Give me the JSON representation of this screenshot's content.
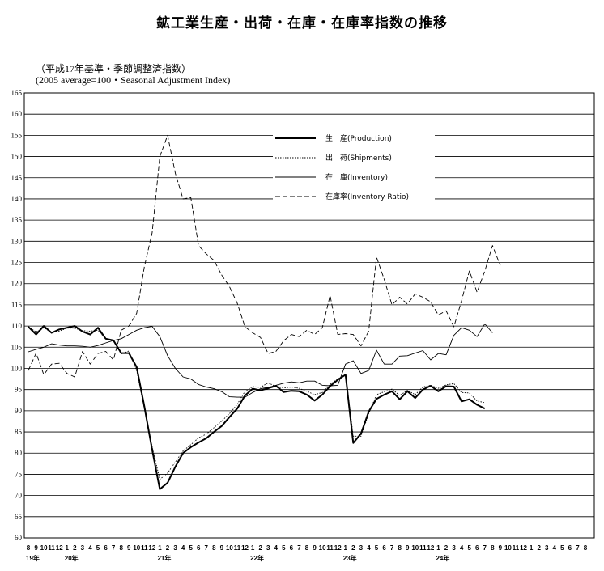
{
  "title": "鉱工業生産・出荷・在庫・在庫率指数の推移",
  "subtitle_jp": "（平成17年基準・季節調整済指数）",
  "subtitle_en": "(2005 average=100・Seasonal Adjustment Index)",
  "chart_data": {
    "type": "line",
    "title": "鉱工業生産・出荷・在庫・在庫率指数の推移",
    "ylim": [
      60,
      165
    ],
    "yticks": [
      60,
      65,
      70,
      75,
      80,
      85,
      90,
      95,
      100,
      105,
      110,
      115,
      120,
      125,
      130,
      135,
      140,
      145,
      150,
      155,
      160,
      165
    ],
    "grid": true,
    "legend_position": "top-center",
    "x_month_labels": [
      "8",
      "9",
      "10",
      "11",
      "12",
      "1",
      "2",
      "3",
      "4",
      "5",
      "6",
      "7",
      "8",
      "9",
      "10",
      "11",
      "12",
      "1",
      "2",
      "3",
      "4",
      "5",
      "6",
      "7",
      "8",
      "9",
      "10",
      "11",
      "12",
      "1",
      "2",
      "3",
      "4",
      "5",
      "6",
      "7",
      "8",
      "9",
      "10",
      "11",
      "12",
      "1",
      "2",
      "3",
      "4",
      "5",
      "6",
      "7",
      "8",
      "9",
      "10",
      "11",
      "12",
      "1",
      "2",
      "3",
      "4",
      "5",
      "6",
      "7",
      "8",
      "9",
      "10",
      "11",
      "12",
      "1",
      "2",
      "3",
      "4",
      "5",
      "6",
      "7",
      "8"
    ],
    "year_labels": [
      {
        "label": "19年",
        "index": 0
      },
      {
        "label": "20年",
        "index": 5
      },
      {
        "label": "21年",
        "index": 17
      },
      {
        "label": "22年",
        "index": 29
      },
      {
        "label": "23年",
        "index": 41
      },
      {
        "label": "24年",
        "index": 53
      }
    ],
    "series": [
      {
        "name": "生　産(Production)",
        "style": "solid-thick",
        "values": [
          109.8,
          108.0,
          110.0,
          108.4,
          109.2,
          109.6,
          110.0,
          108.7,
          108.0,
          109.6,
          107.0,
          106.6,
          103.6,
          103.6,
          100.3,
          91.0,
          80.8,
          71.5,
          73.0,
          76.8,
          80.0,
          81.4,
          82.5,
          83.5,
          85.0,
          86.4,
          88.5,
          90.5,
          93.6,
          95.2,
          94.8,
          95.3,
          95.9,
          94.4,
          94.7,
          94.6,
          93.8,
          92.4,
          93.8,
          95.8,
          97.3,
          98.5,
          82.4,
          84.6,
          89.8,
          92.8,
          93.8,
          94.6,
          92.7,
          94.6,
          93.0,
          95.0,
          95.9,
          94.6,
          95.8,
          95.7,
          92.2,
          92.7,
          91.4,
          90.5
        ]
      },
      {
        "name": "出　荷(Shipments)",
        "style": "dotted",
        "values": [
          109.8,
          108.6,
          109.6,
          108.5,
          108.8,
          109.5,
          109.5,
          108.9,
          108.8,
          109.0,
          107.0,
          106.6,
          103.4,
          104.1,
          99.5,
          90.5,
          81.5,
          73.8,
          75.3,
          77.9,
          80.5,
          82.0,
          83.6,
          84.5,
          86.0,
          87.6,
          89.3,
          91.5,
          94.6,
          95.7,
          95.5,
          96.6,
          95.7,
          95.4,
          95.6,
          95.3,
          94.6,
          93.8,
          94.3,
          96.2,
          97.5,
          98.6,
          84.0,
          84.0,
          89.3,
          93.8,
          94.5,
          95.1,
          93.6,
          94.8,
          93.8,
          95.6,
          96.0,
          95.3,
          96.1,
          96.4,
          94.3,
          94.2,
          92.3,
          91.9
        ]
      },
      {
        "name": "在　庫(Inventory)",
        "style": "solid-thin",
        "values": [
          103.9,
          104.5,
          105.0,
          105.8,
          105.5,
          105.3,
          105.3,
          105.2,
          105.0,
          105.4,
          106.0,
          106.6,
          107.0,
          108.0,
          109.0,
          109.6,
          109.9,
          107.5,
          103.0,
          100.0,
          98.0,
          97.5,
          96.2,
          95.6,
          95.2,
          94.5,
          93.3,
          93.2,
          93.2,
          94.3,
          95.2,
          95.5,
          96.0,
          96.5,
          96.8,
          96.6,
          97.0,
          97.0,
          96.0,
          95.9,
          96.0,
          101.0,
          101.8,
          98.8,
          99.5,
          104.3,
          101.0,
          101.0,
          102.9,
          103.0,
          103.6,
          104.2,
          102.0,
          103.5,
          103.2,
          107.8,
          109.6,
          109.0,
          107.5,
          110.5,
          108.4
        ]
      },
      {
        "name": "在庫率(Inventory Ratio)",
        "style": "dashed",
        "values": [
          99.5,
          103.6,
          98.5,
          101.0,
          101.2,
          98.8,
          98.0,
          104.0,
          101.0,
          103.5,
          104.0,
          102.0,
          109.0,
          110.0,
          113.0,
          124.0,
          132.0,
          150.0,
          155.0,
          146.0,
          140.0,
          140.3,
          129.0,
          127.0,
          125.5,
          122.0,
          119.3,
          115.4,
          109.8,
          108.4,
          107.3,
          103.5,
          104.0,
          106.5,
          108.0,
          107.5,
          109.0,
          108.0,
          109.6,
          117.2,
          108.0,
          108.2,
          108.0,
          105.3,
          108.8,
          126.3,
          121.0,
          115.0,
          116.8,
          115.2,
          117.6,
          116.8,
          115.7,
          112.6,
          113.6,
          109.8,
          116.0,
          123.0,
          118.0,
          123.0,
          129.0,
          124.3
        ]
      }
    ]
  }
}
